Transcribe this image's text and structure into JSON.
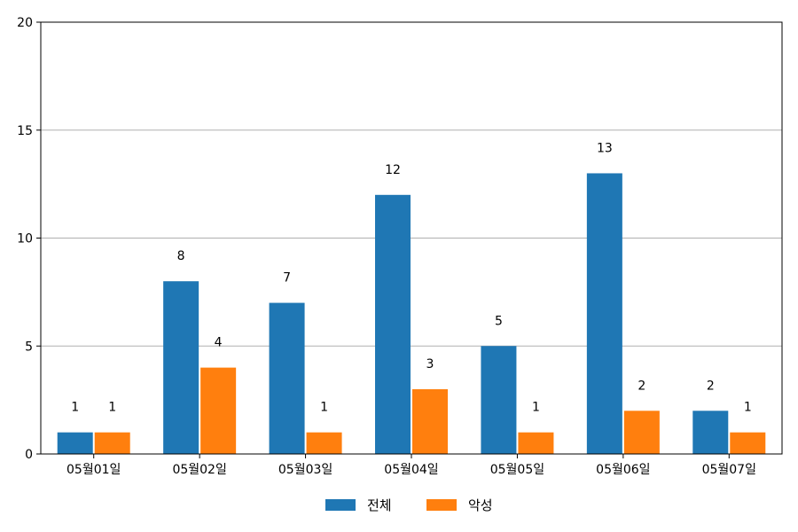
{
  "chart_data": {
    "type": "bar",
    "categories": [
      "05월01일",
      "05월02일",
      "05월03일",
      "05월04일",
      "05월05일",
      "05월06일",
      "05월07일"
    ],
    "series": [
      {
        "name": "전체",
        "values": [
          1,
          8,
          7,
          12,
          5,
          13,
          2
        ],
        "color": "#1f77b4"
      },
      {
        "name": "악성",
        "values": [
          1,
          4,
          1,
          3,
          1,
          2,
          1
        ],
        "color": "#ff7f0e"
      }
    ],
    "ylim": [
      0,
      20
    ],
    "yticks": [
      "0",
      "5",
      "10",
      "15",
      "20"
    ],
    "grid": "horizontal",
    "legend_position": "bottom-center"
  }
}
